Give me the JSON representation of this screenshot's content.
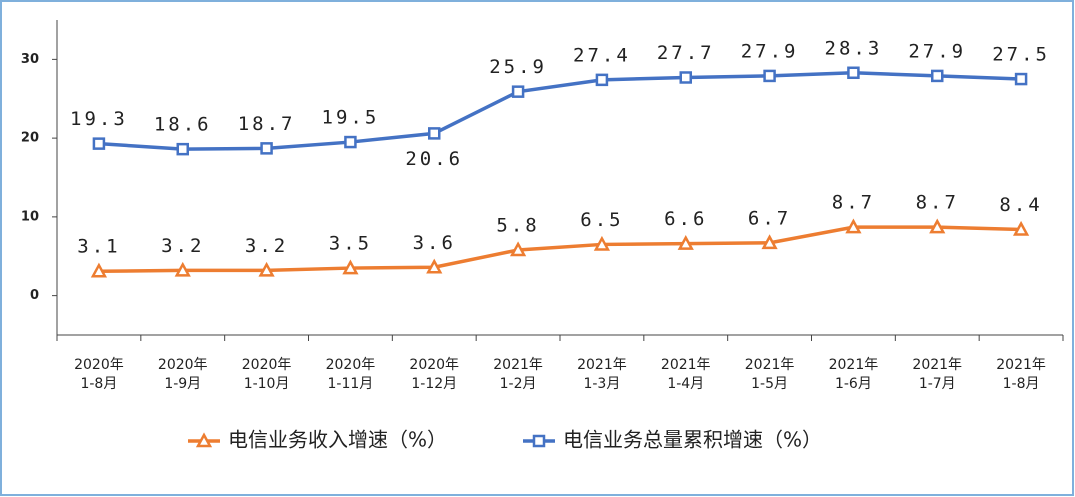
{
  "chart_data": {
    "type": "line",
    "categories": [
      "2020年\n1-8月",
      "2020年\n1-9月",
      "2020年\n1-10月",
      "2020年\n1-11月",
      "2020年\n1-12月",
      "2021年\n1-2月",
      "2021年\n1-3月",
      "2021年\n1-4月",
      "2021年\n1-5月",
      "2021年\n1-6月",
      "2021年\n1-7月",
      "2021年\n1-8月"
    ],
    "series": [
      {
        "name": "电信业务收入增速（%）",
        "color": "#ed7d31",
        "marker": "triangle",
        "values": [
          3.1,
          3.2,
          3.2,
          3.5,
          3.6,
          5.8,
          6.5,
          6.6,
          6.7,
          8.7,
          8.7,
          8.4
        ]
      },
      {
        "name": "电信业务总量累积增速（%）",
        "color": "#4472c4",
        "marker": "square",
        "values": [
          19.3,
          18.6,
          18.7,
          19.5,
          20.6,
          25.9,
          27.4,
          27.7,
          27.9,
          28.3,
          27.9,
          27.5
        ]
      }
    ],
    "ylim": [
      -5,
      35
    ],
    "yticks": [
      0,
      10,
      20,
      30
    ],
    "grid": false
  }
}
